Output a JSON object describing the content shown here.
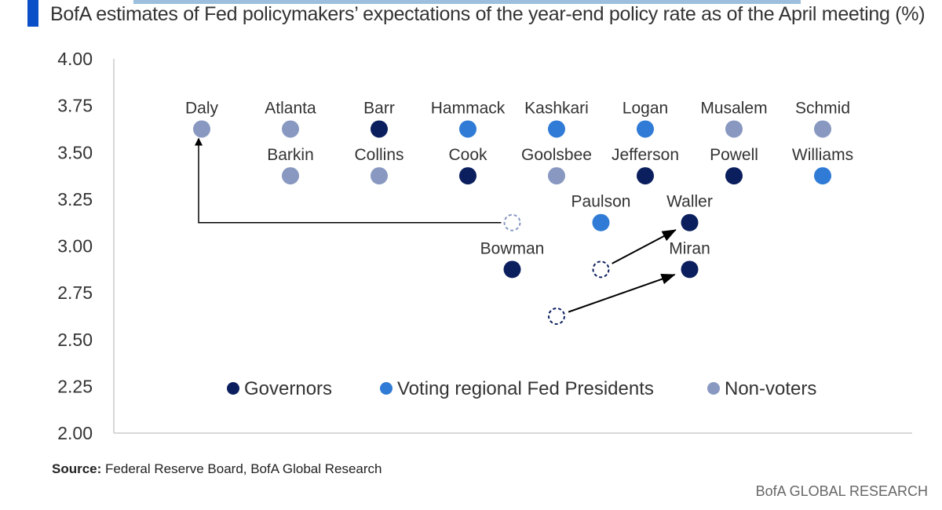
{
  "title": "BofA estimates of Fed policymakers’ expectations of the year-end policy rate as of the April meeting (%)",
  "source_label": "Source:",
  "source_text": " Federal Reserve Board, BofA Global Research",
  "brand": "BofA GLOBAL RESEARCH",
  "chart_data": {
    "type": "scatter",
    "ylim": [
      2.0,
      4.0
    ],
    "yticks": [
      "4.00",
      "3.75",
      "3.50",
      "3.25",
      "3.00",
      "2.75",
      "2.50",
      "2.25",
      "2.00"
    ],
    "grid": false,
    "legend_placement": "bottom",
    "colors": {
      "Governors": "#0b1f5e",
      "Voting regional Fed Presidents": "#2f7bd6",
      "Non-voters": "#8898c0"
    },
    "legend": [
      "Governors",
      "Voting regional Fed Presidents",
      "Non-voters"
    ],
    "points": [
      {
        "name": "Daly",
        "x": 0,
        "y": 3.625,
        "group": "Non-voters"
      },
      {
        "name": "Atlanta",
        "x": 1,
        "y": 3.625,
        "group": "Non-voters"
      },
      {
        "name": "Barr",
        "x": 2,
        "y": 3.625,
        "group": "Governors"
      },
      {
        "name": "Hammack",
        "x": 3,
        "y": 3.625,
        "group": "Voting regional Fed Presidents"
      },
      {
        "name": "Kashkari",
        "x": 4,
        "y": 3.625,
        "group": "Voting regional Fed Presidents"
      },
      {
        "name": "Logan",
        "x": 5,
        "y": 3.625,
        "group": "Voting regional Fed Presidents"
      },
      {
        "name": "Musalem",
        "x": 6,
        "y": 3.625,
        "group": "Non-voters"
      },
      {
        "name": "Schmid",
        "x": 7,
        "y": 3.625,
        "group": "Non-voters"
      },
      {
        "name": "Barkin",
        "x": 1,
        "y": 3.375,
        "group": "Non-voters"
      },
      {
        "name": "Collins",
        "x": 2,
        "y": 3.375,
        "group": "Non-voters"
      },
      {
        "name": "Cook",
        "x": 3,
        "y": 3.375,
        "group": "Governors"
      },
      {
        "name": "Goolsbee",
        "x": 4,
        "y": 3.375,
        "group": "Non-voters"
      },
      {
        "name": "Jefferson",
        "x": 5,
        "y": 3.375,
        "group": "Governors"
      },
      {
        "name": "Powell",
        "x": 6,
        "y": 3.375,
        "group": "Governors"
      },
      {
        "name": "Williams",
        "x": 7,
        "y": 3.375,
        "group": "Voting regional Fed Presidents"
      },
      {
        "name": "Paulson",
        "x": 4.5,
        "y": 3.125,
        "group": "Voting regional Fed Presidents"
      },
      {
        "name": "Waller",
        "x": 5.5,
        "y": 3.125,
        "group": "Governors"
      },
      {
        "name": "Bowman",
        "x": 3.5,
        "y": 2.875,
        "group": "Governors"
      },
      {
        "name": "Miran",
        "x": 5.5,
        "y": 2.875,
        "group": "Governors"
      }
    ],
    "previous": [
      {
        "of": "Daly",
        "x": 3.5,
        "y": 3.125,
        "group": "Non-voters"
      },
      {
        "of": "Waller",
        "x": 4.5,
        "y": 2.875,
        "group": "Governors"
      },
      {
        "of": "Miran",
        "x": 4,
        "y": 2.625,
        "group": "Governors"
      }
    ]
  }
}
